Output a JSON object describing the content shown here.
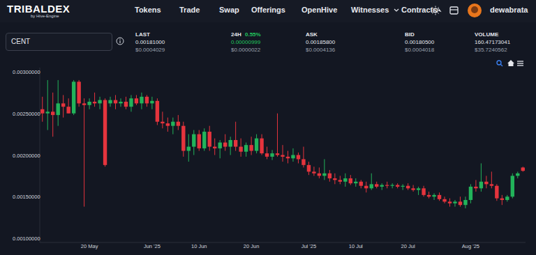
{
  "header": {
    "logo": "TRIBALDEX",
    "logo_sub": "by Hive-Engine",
    "nav": [
      "Tokens",
      "Trade",
      "Swap",
      "Offerings",
      "OpenHive",
      "Witnesses",
      "Contracts"
    ],
    "user": "dewabrata"
  },
  "market": {
    "token": "CENT",
    "stats": [
      {
        "label": "LAST",
        "value": "0.00181000",
        "usd": "$0.0004029"
      },
      {
        "label": "24H",
        "change": "0.55%",
        "value": "0.00000999",
        "usd": "$0.0000022"
      },
      {
        "label": "ASK",
        "value": "0.00185800",
        "usd": "$0.0004136"
      },
      {
        "label": "BID",
        "value": "0.00180500",
        "usd": "$0.0004018"
      },
      {
        "label": "VOLUME",
        "value": "160.47173041",
        "usd": "$35.7240562"
      }
    ]
  },
  "chart_data": {
    "type": "candlestick",
    "categories": [
      null,
      null,
      null,
      null,
      null,
      null,
      null,
      null,
      null,
      "20 May",
      null,
      null,
      null,
      null,
      null,
      null,
      null,
      null,
      null,
      null,
      null,
      "Jun '25",
      null,
      null,
      null,
      null,
      null,
      null,
      null,
      null,
      "10 Jun",
      null,
      null,
      null,
      null,
      null,
      null,
      null,
      null,
      null,
      "20 Jun",
      null,
      null,
      null,
      null,
      null,
      null,
      null,
      null,
      null,
      null,
      "Jul '25",
      null,
      null,
      null,
      null,
      null,
      null,
      null,
      null,
      "10 Jul",
      null,
      null,
      null,
      null,
      null,
      null,
      null,
      null,
      null,
      "20 Jul",
      null,
      null,
      null,
      null,
      null,
      null,
      null,
      null,
      null,
      null,
      null,
      "Aug '25",
      null,
      null,
      null,
      null,
      null,
      null,
      null,
      null,
      null,
      null
    ],
    "open": [
      0.00255,
      0.0025,
      0.00252,
      0.00248,
      0.00262,
      0.00258,
      0.0025,
      0.00288,
      0.00262,
      0.0026,
      0.00264,
      0.00262,
      0.00266,
      0.00262,
      0.00266,
      0.00262,
      0.00264,
      0.00258,
      0.00268,
      0.00262,
      0.0027,
      0.00262,
      0.00265,
      0.0024,
      0.00238,
      0.00235,
      0.0024,
      0.00235,
      0.00205,
      0.0021,
      0.00225,
      0.00208,
      0.00228,
      0.0021,
      0.00208,
      0.00215,
      0.0021,
      0.00218,
      0.0021,
      0.00204,
      0.00212,
      0.00205,
      0.0022,
      0.00202,
      0.00198,
      0.00202,
      0.002,
      0.00198,
      0.00196,
      0.002,
      0.00195,
      0.00188,
      0.0018,
      0.00178,
      0.00175,
      0.00178,
      0.00172,
      0.0017,
      0.00168,
      0.00172,
      0.00166,
      0.00168,
      0.00163,
      0.0016,
      0.00165,
      0.00162,
      0.00164,
      0.00163,
      0.00164,
      0.00162,
      0.00163,
      0.0016,
      0.00158,
      0.0016,
      0.00152,
      0.0015,
      0.00152,
      0.00147,
      0.00144,
      0.00142,
      0.00144,
      0.0014,
      0.00146,
      0.00162,
      0.0016,
      0.00168,
      0.00165,
      0.00163,
      0.00148,
      0.00146,
      0.0015,
      0.00175,
      0.00185
    ],
    "high": [
      0.0027,
      0.0029,
      0.00275,
      0.0029,
      0.00272,
      0.00268,
      0.0029,
      0.0029,
      0.00268,
      0.00268,
      0.00275,
      0.0027,
      0.00268,
      0.0027,
      0.00272,
      0.00268,
      0.0027,
      0.00272,
      0.00272,
      0.00275,
      0.00272,
      0.0027,
      0.00268,
      0.00252,
      0.00245,
      0.00245,
      0.00248,
      0.0024,
      0.00225,
      0.0023,
      0.0023,
      0.00232,
      0.00235,
      0.0022,
      0.00218,
      0.00225,
      0.00222,
      0.0024,
      0.0022,
      0.00215,
      0.00222,
      0.00225,
      0.00225,
      0.0021,
      0.00206,
      0.0025,
      0.00212,
      0.00205,
      0.00208,
      0.00203,
      0.0021,
      0.00192,
      0.00186,
      0.00185,
      0.00195,
      0.00182,
      0.00178,
      0.00175,
      0.00178,
      0.00176,
      0.00172,
      0.0017,
      0.00168,
      0.00178,
      0.00168,
      0.00166,
      0.00168,
      0.00166,
      0.00166,
      0.00165,
      0.00166,
      0.00164,
      0.00162,
      0.00163,
      0.00156,
      0.00154,
      0.00155,
      0.0015,
      0.00148,
      0.00146,
      0.0015,
      0.0015,
      0.00165,
      0.0017,
      0.0019,
      0.00175,
      0.0018,
      0.00165,
      0.00152,
      0.00152,
      0.00178,
      0.0018,
      0.00186
    ],
    "low": [
      0.0024,
      0.0023,
      0.00222,
      0.00235,
      0.00245,
      0.0025,
      0.00248,
      0.00258,
      0.00138,
      0.00255,
      0.00258,
      0.00255,
      0.00186,
      0.00258,
      0.00255,
      0.00258,
      0.00255,
      0.00252,
      0.0026,
      0.00255,
      0.00258,
      0.00255,
      0.00236,
      0.00232,
      0.00228,
      0.00225,
      0.0023,
      0.00198,
      0.00192,
      0.002,
      0.00205,
      0.00205,
      0.00205,
      0.002,
      0.00196,
      0.00205,
      0.002,
      0.00205,
      0.00198,
      0.00198,
      0.002,
      0.00202,
      0.002,
      0.00195,
      0.00194,
      0.00198,
      0.00192,
      0.0019,
      0.00192,
      0.0019,
      0.00185,
      0.00176,
      0.00175,
      0.00172,
      0.0017,
      0.00168,
      0.00165,
      0.00165,
      0.00162,
      0.00164,
      0.00162,
      0.0016,
      0.00155,
      0.00158,
      0.0016,
      0.00158,
      0.0016,
      0.0016,
      0.0016,
      0.00158,
      0.00158,
      0.00156,
      0.00152,
      0.0015,
      0.00148,
      0.00146,
      0.00145,
      0.00142,
      0.00138,
      0.00138,
      0.00138,
      0.00136,
      0.00142,
      0.00156,
      0.00156,
      0.0016,
      0.0016,
      0.00145,
      0.0014,
      0.00144,
      0.00148,
      0.00172,
      0.0018
    ],
    "close": [
      0.0025,
      0.00252,
      0.00248,
      0.00262,
      0.00258,
      0.0025,
      0.00288,
      0.00262,
      0.0026,
      0.00264,
      0.00262,
      0.00266,
      0.00188,
      0.00266,
      0.00262,
      0.00264,
      0.00258,
      0.00268,
      0.00262,
      0.0027,
      0.00262,
      0.00265,
      0.0024,
      0.00238,
      0.00235,
      0.0024,
      0.00235,
      0.00205,
      0.0021,
      0.00225,
      0.00208,
      0.00228,
      0.0021,
      0.00208,
      0.00215,
      0.0021,
      0.00218,
      0.0021,
      0.00204,
      0.00212,
      0.00205,
      0.0022,
      0.00202,
      0.00198,
      0.00202,
      0.002,
      0.00198,
      0.00196,
      0.002,
      0.00195,
      0.00188,
      0.0018,
      0.00178,
      0.00175,
      0.00178,
      0.00172,
      0.0017,
      0.00168,
      0.00172,
      0.00166,
      0.00168,
      0.00163,
      0.0016,
      0.00165,
      0.00162,
      0.00164,
      0.00163,
      0.00164,
      0.00162,
      0.00163,
      0.0016,
      0.00158,
      0.0016,
      0.00152,
      0.0015,
      0.00152,
      0.00147,
      0.00144,
      0.00142,
      0.00144,
      0.0014,
      0.00146,
      0.00162,
      0.0016,
      0.00168,
      0.00165,
      0.00163,
      0.00148,
      0.00146,
      0.0015,
      0.00175,
      0.00178,
      0.00181
    ],
    "ylim": [
      0.00095,
      0.00305
    ],
    "yticks": [
      {
        "value": 0.001,
        "label": "0.00100000"
      },
      {
        "value": 0.0015,
        "label": "0.00150000"
      },
      {
        "value": 0.002,
        "label": "0.00200000"
      },
      {
        "value": 0.0025,
        "label": "0.00250000"
      },
      {
        "value": 0.003,
        "label": "0.00300000"
      }
    ],
    "grid": false
  }
}
